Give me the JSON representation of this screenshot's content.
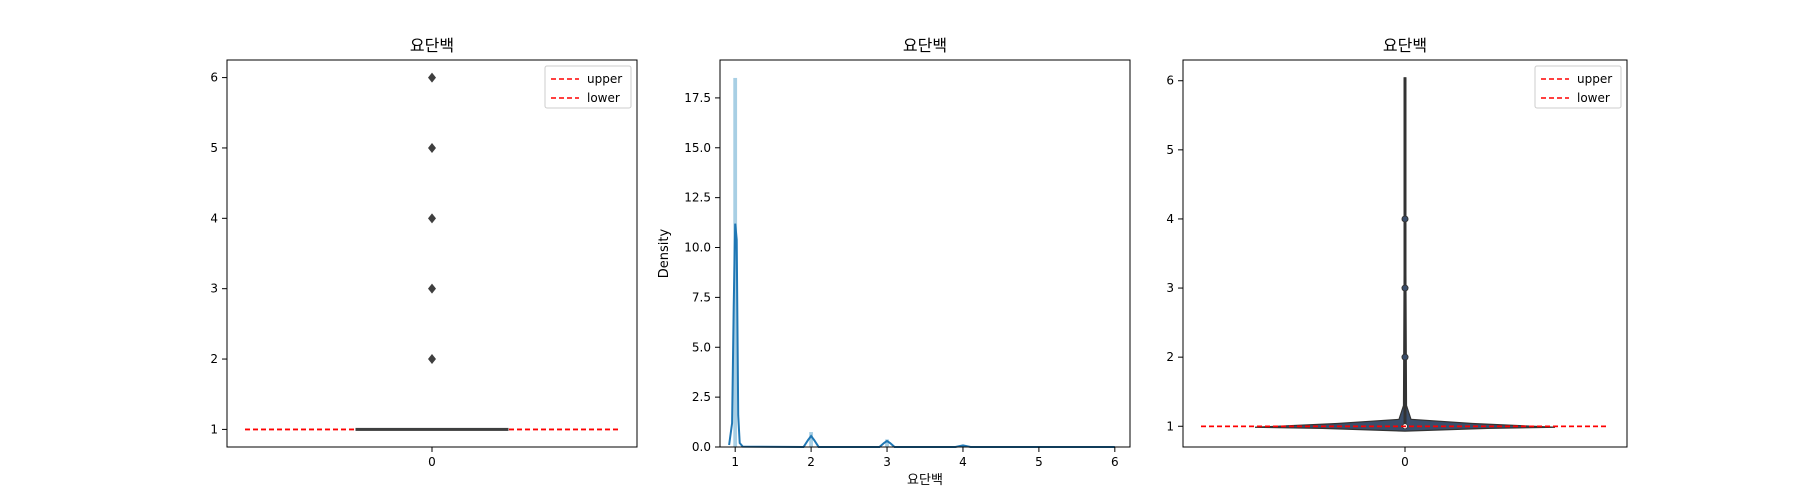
{
  "chart_data": [
    {
      "type": "box",
      "title": "요단백",
      "xlabel": "",
      "ylabel": "",
      "x_ticks": [
        "0"
      ],
      "y_ticks": [
        1,
        2,
        3,
        4,
        5,
        6
      ],
      "ylim": [
        0.75,
        6.25
      ],
      "median": 1,
      "q1": 1,
      "q3": 1,
      "whisker_low": 1,
      "whisker_high": 1,
      "outliers": [
        2,
        3,
        4,
        5,
        6
      ],
      "reference_lines": [
        {
          "label": "upper",
          "value": 1,
          "color": "#ff0000"
        },
        {
          "label": "lower",
          "value": 1,
          "color": "#ff0000"
        }
      ],
      "legend_position": "top-right"
    },
    {
      "type": "histogram",
      "title": "요단백",
      "xlabel": "요단백",
      "ylabel": "Density",
      "x_ticks": [
        1,
        2,
        3,
        4,
        5,
        6
      ],
      "y_ticks": [
        "0.0",
        "2.5",
        "5.0",
        "7.5",
        "10.0",
        "12.5",
        "15.0",
        "17.5"
      ],
      "xlim": [
        0.8,
        6.2
      ],
      "ylim": [
        0,
        19.4
      ],
      "bins": [
        {
          "x": 1.0,
          "width": 0.05,
          "value": 18.5
        },
        {
          "x": 2.0,
          "width": 0.05,
          "value": 0.75
        },
        {
          "x": 3.0,
          "width": 0.05,
          "value": 0.38
        },
        {
          "x": 4.0,
          "width": 0.05,
          "value": 0.1
        },
        {
          "x": 5.0,
          "width": 0.05,
          "value": 0.03
        },
        {
          "x": 6.0,
          "width": 0.05,
          "value": 0.02
        }
      ],
      "kde": {
        "x": [
          0.92,
          0.96,
          0.98,
          1.0,
          1.02,
          1.04,
          1.06,
          1.1,
          1.9,
          1.96,
          2.0,
          2.04,
          2.1,
          2.9,
          2.96,
          3.0,
          3.04,
          3.1,
          3.9,
          4.0,
          4.1,
          6.0
        ],
        "y": [
          0.1,
          1.2,
          7.0,
          11.2,
          10.4,
          1.6,
          0.2,
          0.02,
          0.0,
          0.35,
          0.55,
          0.35,
          0.0,
          0.0,
          0.2,
          0.3,
          0.2,
          0.0,
          0.0,
          0.08,
          0.0,
          0.0
        ]
      },
      "bar_color": "#9ecae1",
      "line_color": "#1f77b4"
    },
    {
      "type": "violin",
      "title": "요단백",
      "xlabel": "",
      "ylabel": "",
      "x_ticks": [
        "0"
      ],
      "y_ticks": [
        1,
        2,
        3,
        4,
        5,
        6
      ],
      "ylim": [
        0.7,
        6.3
      ],
      "violin_range": [
        0.93,
        6.05
      ],
      "median": 1,
      "points": [
        2,
        3,
        4
      ],
      "reference_lines": [
        {
          "label": "upper",
          "value": 1,
          "color": "#ff0000"
        },
        {
          "label": "lower",
          "value": 1,
          "color": "#ff0000"
        }
      ],
      "body_color": "#3a4e6b",
      "legend_position": "top-right"
    }
  ]
}
